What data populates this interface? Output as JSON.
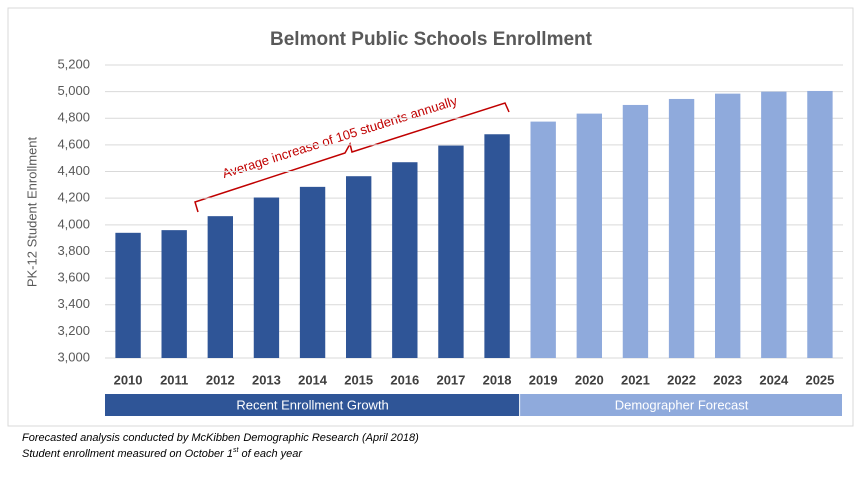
{
  "chart_data": {
    "type": "bar",
    "title": "Belmont Public Schools Enrollment",
    "y_label": "PK-12 Student Enrollment",
    "categories": [
      "2010",
      "2011",
      "2012",
      "2013",
      "2014",
      "2015",
      "2016",
      "2017",
      "2018",
      "2019",
      "2020",
      "2021",
      "2022",
      "2023",
      "2024",
      "2025"
    ],
    "series": [
      {
        "name": "Recent Enrollment Growth",
        "color": "#2f5597",
        "values": [
          3940,
          3960,
          4065,
          4205,
          4285,
          4365,
          4470,
          4595,
          4680,
          null,
          null,
          null,
          null,
          null,
          null,
          null
        ]
      },
      {
        "name": "Demographer Forecast",
        "color": "#8faadc",
        "values": [
          null,
          null,
          null,
          null,
          null,
          null,
          null,
          null,
          null,
          4775,
          4835,
          4900,
          4945,
          4985,
          5000,
          5005
        ]
      }
    ],
    "ylim": [
      3000,
      5200
    ],
    "yticks": [
      {
        "value": 3000,
        "label": "3,000"
      },
      {
        "value": 3200,
        "label": "3,200"
      },
      {
        "value": 3400,
        "label": "3,400"
      },
      {
        "value": 3600,
        "label": "3,600"
      },
      {
        "value": 3800,
        "label": "3,800"
      },
      {
        "value": 4000,
        "label": "4,000"
      },
      {
        "value": 4200,
        "label": "4,200"
      },
      {
        "value": 4400,
        "label": "4,400"
      },
      {
        "value": 4600,
        "label": "4,600"
      },
      {
        "value": 4800,
        "label": "4,800"
      },
      {
        "value": 5000,
        "label": "5,000"
      },
      {
        "value": 5200,
        "label": "5,200"
      }
    ],
    "grid": true,
    "annotation": "Average increase of 105 students annually",
    "footnote1": "Forecasted  analysis conducted by McKibben Demographic Research  (April 2018)",
    "footnote2": {
      "before": "Student enrollment measured  on October 1",
      "sup": "st",
      "after": " of each year"
    }
  }
}
